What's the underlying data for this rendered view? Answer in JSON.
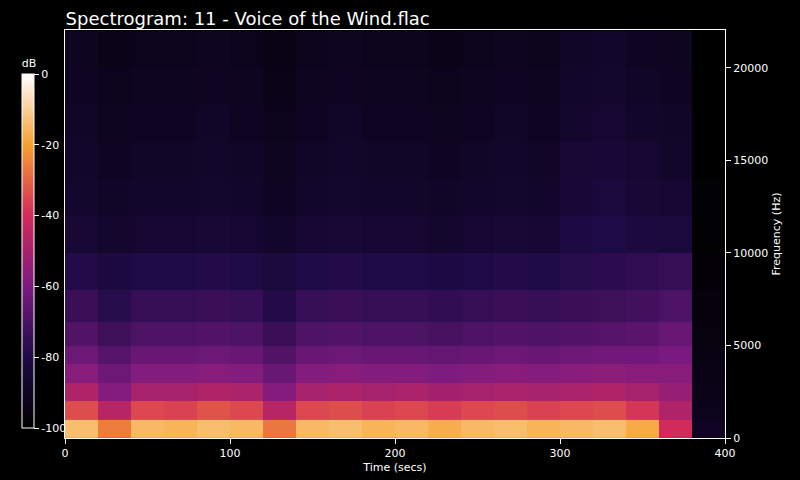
{
  "chart_data": {
    "type": "heatmap",
    "title": "Spectrogram: 11 - Voice of the Wind.flac",
    "x_label": "Time (secs)",
    "y_label": "Frequency (Hz)",
    "xlim": [
      0,
      400
    ],
    "xticks": [
      0,
      100,
      200,
      300,
      400
    ],
    "ylim": [
      0,
      22050
    ],
    "yticks": [
      0,
      5000,
      10000,
      15000,
      20000
    ],
    "x": [
      10,
      30,
      50,
      70,
      90,
      110,
      130,
      150,
      170,
      190,
      210,
      230,
      250,
      270,
      290,
      310,
      330,
      350,
      370,
      390
    ],
    "y": [
      500,
      1500,
      2500,
      3500,
      4500,
      5500,
      7000,
      9000,
      11000,
      13000,
      15000,
      17000,
      19000,
      21000
    ],
    "z": [
      [
        -14,
        -26,
        -15,
        -16,
        -14,
        -15,
        -27,
        -15,
        -14,
        -16,
        -15,
        -17,
        -15,
        -14,
        -16,
        -15,
        -14,
        -18,
        -40,
        -90
      ],
      [
        -34,
        -46,
        -35,
        -36,
        -33,
        -35,
        -46,
        -35,
        -34,
        -36,
        -35,
        -37,
        -35,
        -34,
        -36,
        -35,
        -34,
        -38,
        -48,
        -92
      ],
      [
        -48,
        -58,
        -50,
        -50,
        -48,
        -49,
        -58,
        -50,
        -49,
        -50,
        -49,
        -51,
        -50,
        -49,
        -50,
        -49,
        -48,
        -50,
        -54,
        -93
      ],
      [
        -57,
        -63,
        -58,
        -58,
        -57,
        -58,
        -64,
        -58,
        -57,
        -58,
        -58,
        -59,
        -58,
        -57,
        -58,
        -57,
        -56,
        -57,
        -57,
        -94
      ],
      [
        -63,
        -68,
        -64,
        -64,
        -63,
        -64,
        -69,
        -64,
        -63,
        -64,
        -64,
        -65,
        -64,
        -63,
        -64,
        -63,
        -62,
        -62,
        -60,
        -95
      ],
      [
        -69,
        -73,
        -70,
        -70,
        -69,
        -70,
        -74,
        -70,
        -69,
        -70,
        -70,
        -71,
        -70,
        -69,
        -70,
        -69,
        -68,
        -67,
        -64,
        -96
      ],
      [
        -74,
        -78,
        -75,
        -75,
        -74,
        -75,
        -79,
        -75,
        -74,
        -75,
        -75,
        -76,
        -75,
        -74,
        -75,
        -74,
        -73,
        -72,
        -70,
        -97
      ],
      [
        -79,
        -82,
        -80,
        -80,
        -79,
        -80,
        -83,
        -80,
        -79,
        -80,
        -80,
        -81,
        -80,
        -79,
        -80,
        -78,
        -77,
        -76,
        -75,
        -98
      ],
      [
        -85,
        -87,
        -86,
        -86,
        -85,
        -86,
        -88,
        -86,
        -85,
        -86,
        -86,
        -87,
        -86,
        -85,
        -86,
        -81,
        -80,
        -82,
        -83,
        -99
      ],
      [
        -87,
        -89,
        -88,
        -88,
        -87,
        -88,
        -90,
        -88,
        -87,
        -88,
        -88,
        -89,
        -88,
        -87,
        -88,
        -84,
        -83,
        -85,
        -86,
        -99
      ],
      [
        -88,
        -90,
        -89,
        -89,
        -88,
        -89,
        -91,
        -89,
        -88,
        -89,
        -89,
        -90,
        -89,
        -88,
        -89,
        -85,
        -84,
        -86,
        -88,
        -100
      ],
      [
        -89,
        -91,
        -90,
        -90,
        -89,
        -90,
        -92,
        -90,
        -89,
        -90,
        -90,
        -91,
        -90,
        -89,
        -90,
        -87,
        -86,
        -88,
        -89,
        -100
      ],
      [
        -90,
        -92,
        -91,
        -91,
        -90,
        -91,
        -93,
        -91,
        -90,
        -91,
        -91,
        -92,
        -91,
        -90,
        -91,
        -88,
        -87,
        -89,
        -90,
        -100
      ],
      [
        -91,
        -93,
        -92,
        -92,
        -91,
        -92,
        -94,
        -92,
        -91,
        -92,
        -92,
        -93,
        -92,
        -91,
        -92,
        -89,
        -88,
        -90,
        -91,
        -100
      ]
    ],
    "zlim": [
      -100,
      0
    ],
    "zticks": [
      0,
      -20,
      -40,
      -60,
      -80,
      -100
    ],
    "colorbar_label": "dB"
  }
}
